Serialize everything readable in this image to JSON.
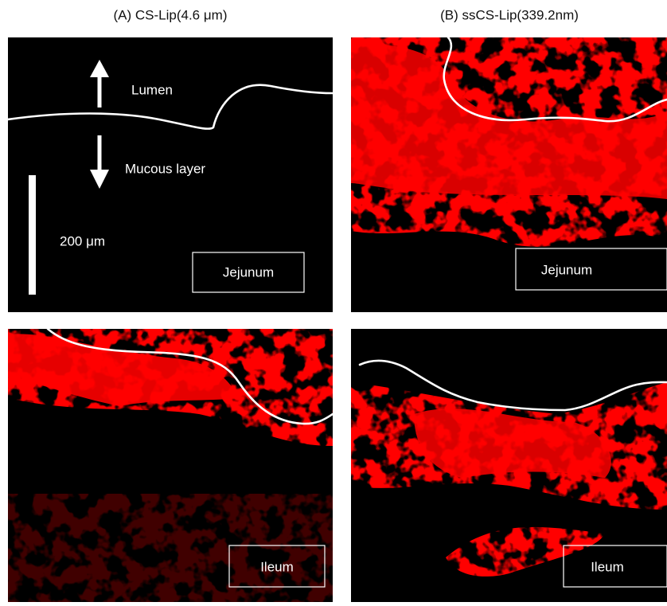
{
  "columns": [
    {
      "title": "(A) CS-Lip(4.6 μm)"
    },
    {
      "title": "(B) ssCS-Lip(339.2nm)"
    }
  ],
  "annotations": {
    "lumen": "Lumen",
    "mucous": "Mucous layer",
    "scale": "200 μm"
  },
  "panels": [
    {
      "label": "Jejunum"
    },
    {
      "label": "Jejunum"
    },
    {
      "label": "Ileum"
    },
    {
      "label": "Ileum"
    }
  ]
}
